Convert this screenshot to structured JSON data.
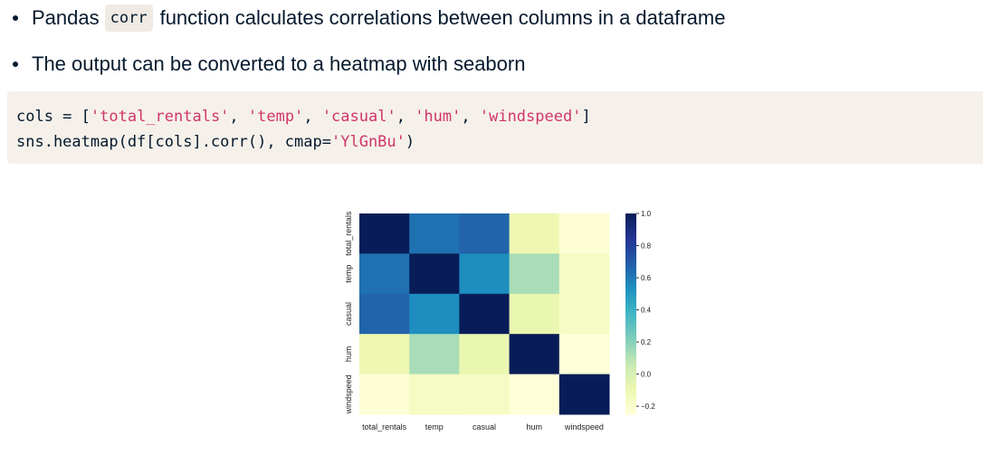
{
  "bullets": [
    {
      "before": "Pandas",
      "code": "corr",
      "after": "function calculates correlations between columns in a dataframe"
    },
    {
      "text": "The output can be converted to a heatmap with seaborn"
    }
  ],
  "code": {
    "line1": {
      "prefix": "cols = [",
      "s1": "'total_rentals'",
      "c1": ", ",
      "s2": "'temp'",
      "c2": ", ",
      "s3": "'casual'",
      "c3": ", ",
      "s4": "'hum'",
      "c4": ", ",
      "s5": "'windspeed'",
      "suffix": "]"
    },
    "line2": {
      "prefix": "sns.heatmap(df[cols].corr(), cmap=",
      "s1": "'YlGnBu'",
      "suffix": ")"
    }
  },
  "colors": {
    "code_string": "#d1356b",
    "code_bg": "#f5f1ea",
    "text": "#05192d"
  },
  "chart_data": {
    "type": "heatmap",
    "labels": [
      "total_rentals",
      "temp",
      "casual",
      "hum",
      "windspeed"
    ],
    "values": [
      [
        1.0,
        0.63,
        0.67,
        -0.1,
        -0.23
      ],
      [
        0.63,
        1.0,
        0.54,
        0.13,
        -0.16
      ],
      [
        0.67,
        0.54,
        1.0,
        -0.08,
        -0.17
      ],
      [
        -0.1,
        0.13,
        -0.08,
        1.0,
        -0.25
      ],
      [
        -0.23,
        -0.16,
        -0.17,
        -0.25,
        1.0
      ]
    ],
    "cmap": "YlGnBu",
    "colorbar": {
      "min": -0.25,
      "max": 1.0,
      "ticks": [
        "1.0",
        "0.8",
        "0.6",
        "0.4",
        "0.2",
        "0.0",
        "-0.2"
      ]
    }
  }
}
